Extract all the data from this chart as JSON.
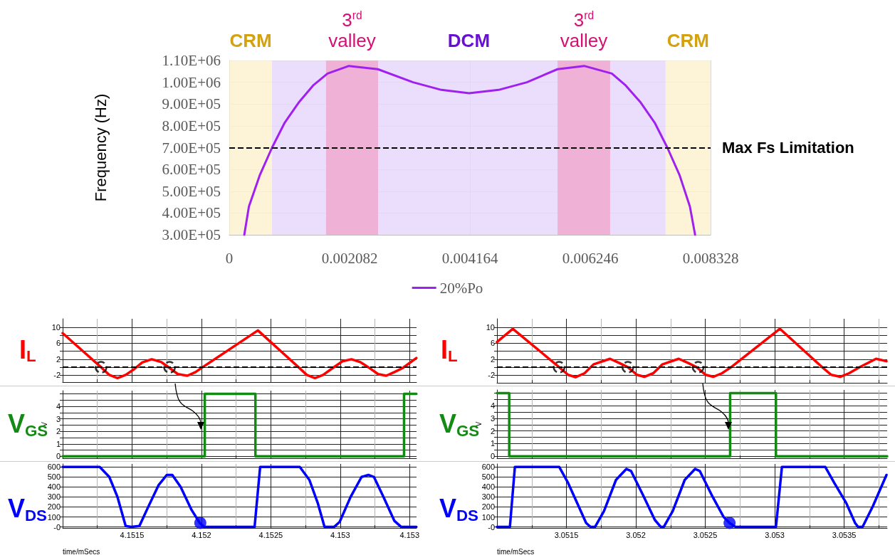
{
  "chart_data": [
    {
      "type": "line",
      "ylabel": "Frequency (Hz)",
      "x": [
        0.00026,
        0.00034,
        0.00053,
        0.00074,
        0.00096,
        0.00121,
        0.00145,
        0.0017,
        0.00207,
        0.00257,
        0.00318,
        0.00367,
        0.00415,
        0.00466,
        0.00515,
        0.00568,
        0.00614,
        0.00662,
        0.00686,
        0.00711,
        0.00736,
        0.00758,
        0.00779,
        0.00797,
        0.00806
      ],
      "series": [
        {
          "name": "20%Po",
          "color": "#a020f0",
          "values": [
            300000,
            430000,
            575000,
            700000,
            815000,
            910000,
            985000,
            1040000,
            1075000,
            1060000,
            1000000,
            965000,
            950000,
            965000,
            1000000,
            1060000,
            1075000,
            1040000,
            985000,
            910000,
            815000,
            700000,
            575000,
            430000,
            300000
          ]
        }
      ],
      "xlim": [
        0,
        0.008328
      ],
      "xticks": [
        0,
        0.002082,
        0.004164,
        0.006246,
        0.008328
      ],
      "ylim": [
        300000,
        1100000
      ],
      "yticks": [
        {
          "value": 300000,
          "label": "3.00E+05"
        },
        {
          "value": 400000,
          "label": "4.00E+05"
        },
        {
          "value": 500000,
          "label": "5.00E+05"
        },
        {
          "value": 600000,
          "label": "6.00E+05"
        },
        {
          "value": 700000,
          "label": "7.00E+05"
        },
        {
          "value": 800000,
          "label": "8.00E+05"
        },
        {
          "value": 900000,
          "label": "9.00E+05"
        },
        {
          "value": 1000000,
          "label": "1.00E+06"
        },
        {
          "value": 1100000,
          "label": "1.10E+06"
        }
      ],
      "grid": true,
      "legend": "bottom",
      "bands": [
        {
          "axis": "x",
          "from": 0,
          "to": 0.00074,
          "label": "CRM",
          "color": "#fdf0cc"
        },
        {
          "axis": "x",
          "from": 0.00074,
          "to": 0.00755,
          "label": "DCM",
          "color": "#e6d5fb"
        },
        {
          "axis": "x",
          "from": 0.001675,
          "to": 0.002575,
          "label": "3$^{rd}$\nvalley",
          "color": "#f0a8cc"
        },
        {
          "axis": "x",
          "from": 0.00568,
          "to": 0.00659,
          "label": "3$^{rd}$\nvalley",
          "color": "#f0a8cc"
        },
        {
          "axis": "x",
          "from": 0.00755,
          "to": 0.008328,
          "label": "CRM",
          "color": "#fdf0cc"
        }
      ],
      "ref_lines": [
        {
          "axis": "y",
          "value": 700000,
          "label": "Max Fs Limitation",
          "line_style": "dashed",
          "color": "#000000"
        }
      ]
    },
    {
      "type": "line",
      "title": "I$_{L}$",
      "x": [
        4.151,
        4.151277,
        4.151336,
        4.151395,
        4.151454,
        4.151514,
        4.151573,
        4.151642,
        4.151711,
        4.151771,
        4.15183,
        4.151899,
        4.151958,
        4.152008,
        4.152407,
        4.1527,
        4.152759,
        4.152818,
        4.152877,
        4.152946,
        4.153016,
        4.153081,
        4.153144,
        4.153203,
        4.153273,
        4.153332,
        4.153391,
        4.15345,
        4.153549
      ],
      "series": [
        {
          "color": "#ff0000",
          "values": [
            8.5,
            0,
            -1.9,
            -2.7,
            -1.9,
            -0.5,
            1.2,
            2,
            1.3,
            -0.2,
            -1.7,
            -2.1,
            -1.2,
            0,
            9.2,
            0,
            -1.9,
            -2.7,
            -1.9,
            -0.2,
            1.5,
            2,
            1.3,
            0,
            -1.7,
            -2.1,
            -1.2,
            -0.2,
            2.3
          ]
        },
        {
          "type": "scatter",
          "x": [
            4.151277,
            4.151771
          ],
          "values": [
            0,
            0
          ],
          "color": "#000000",
          "marker": "circle",
          "line_style": "dashed"
        }
      ],
      "xlim": [
        4.151,
        4.15355
      ],
      "xticks": [
        {
          "value": 4.15125,
          "label": null
        },
        {
          "value": 4.1515,
          "label": null
        },
        {
          "value": 4.15175,
          "label": null
        },
        {
          "value": 4.152,
          "label": null
        },
        {
          "value": 4.15225,
          "label": null
        },
        {
          "value": 4.1525,
          "label": null
        },
        {
          "value": 4.15275,
          "label": null
        },
        {
          "value": 4.153,
          "label": null
        },
        {
          "value": 4.15325,
          "label": null
        },
        {
          "value": 4.1535,
          "label": null
        }
      ],
      "ylim": [
        -3.7,
        12.1
      ],
      "yticks": [
        -2,
        {
          "value": 0,
          "label": null
        },
        2,
        {
          "value": 4,
          "label": null
        },
        6,
        {
          "value": 8,
          "label": null
        },
        10
      ],
      "grid": true,
      "tick_labels": "y",
      "ref_lines": [
        {
          "axis": "y",
          "value": 0,
          "line_style": "dashed",
          "color": "#000000"
        }
      ]
    },
    {
      "type": "step",
      "title": "V$_{GS}$",
      "ylabel": "V",
      "x": [
        4.151,
        4.152024,
        4.152389,
        4.15346,
        4.153549
      ],
      "series": [
        {
          "color": "#138a13",
          "values": [
            0,
            5,
            0,
            5,
            5
          ]
        }
      ],
      "xlim": [
        4.151,
        4.15355
      ],
      "xticks": [
        {
          "value": 4.15125,
          "label": null
        },
        {
          "value": 4.1515,
          "label": null
        },
        {
          "value": 4.15175,
          "label": null
        },
        {
          "value": 4.152,
          "label": null
        },
        {
          "value": 4.15225,
          "label": null
        },
        {
          "value": 4.1525,
          "label": null
        },
        {
          "value": 4.15275,
          "label": null
        },
        {
          "value": 4.153,
          "label": null
        },
        {
          "value": 4.15325,
          "label": null
        },
        {
          "value": 4.1535,
          "label": null
        }
      ],
      "ylim": [
        -0.15,
        5.25
      ],
      "yticks": [
        0,
        {
          "value": 0.5,
          "label": null
        },
        1,
        {
          "value": 1.5,
          "label": null
        },
        2,
        {
          "value": 2.5,
          "label": null
        },
        3,
        {
          "value": 3.5,
          "label": null
        },
        4,
        {
          "value": 4.5,
          "label": null
        },
        {
          "value": 5,
          "label": null
        }
      ],
      "grid": true,
      "tick_labels": "y"
    },
    {
      "type": "line",
      "title": "V$_{DS}$",
      "xlabel": "time/mSecs",
      "x": [
        4.151,
        4.151267,
        4.151336,
        4.151395,
        4.151454,
        4.151494,
        4.151553,
        4.151613,
        4.151692,
        4.151751,
        4.15179,
        4.15185,
        4.151929,
        4.151988,
        4.152018,
        4.152383,
        4.152423,
        4.152709,
        4.152778,
        4.152838,
        4.152887,
        4.152956,
        4.152996,
        4.153075,
        4.153154,
        4.153203,
        4.153243,
        4.153312,
        4.153391,
        4.15344,
        4.153549
      ],
      "series": [
        {
          "color": "#0000ff",
          "values": [
            600,
            600,
            500,
            300,
            10,
            0,
            10,
            190,
            420,
            520,
            520,
            400,
            170,
            40,
            0,
            0,
            600,
            600,
            470,
            240,
            0,
            0,
            50,
            300,
            500,
            520,
            500,
            300,
            60,
            0,
            0
          ]
        },
        {
          "type": "scatter",
          "x": [
            4.151992
          ],
          "values": [
            40
          ],
          "color": "#0000ff",
          "marker": "circle"
        }
      ],
      "xlim": [
        4.151,
        4.15355
      ],
      "xticks": [
        {
          "value": 4.15125,
          "label": null
        },
        4.1515,
        {
          "value": 4.15175,
          "label": null
        },
        4.152,
        {
          "value": 4.15225,
          "label": null
        },
        4.1525,
        {
          "value": 4.15275,
          "label": null
        },
        4.153,
        {
          "value": 4.15325,
          "label": null
        },
        {
          "value": 4.1535,
          "label": "4.153"
        }
      ],
      "ylim": [
        -10,
        630
      ],
      "yticks": [
        {
          "value": 0,
          "label": "-0"
        },
        100,
        200,
        300,
        400,
        500,
        600
      ],
      "grid": true
    },
    {
      "type": "line",
      "title": "I$_{L}$",
      "x": [
        3.051,
        3.051114,
        3.051448,
        3.051512,
        3.051566,
        3.051631,
        3.051695,
        3.051814,
        3.051878,
        3.051943,
        3.052008,
        3.052061,
        3.052126,
        3.052191,
        3.052309,
        3.052374,
        3.052438,
        3.052503,
        3.052557,
        3.052621,
        3.052686,
        3.053037,
        3.053342,
        3.053407,
        3.053472,
        3.053536,
        3.053612,
        3.05373,
        3.053805
      ],
      "series": [
        {
          "color": "#ff0000",
          "values": [
            6.3,
            9.6,
            0,
            -1.9,
            -2.5,
            -1.5,
            0.7,
            2.1,
            1.1,
            0,
            -1.9,
            -2.4,
            -1.5,
            0.7,
            2.1,
            1.1,
            0,
            -1.9,
            -2.4,
            -1.5,
            0,
            9.6,
            0,
            -1.9,
            -2.4,
            -1.5,
            0,
            2.1,
            1.5
          ]
        },
        {
          "type": "scatter",
          "x": [
            3.051448,
            3.051943,
            3.052449
          ],
          "values": [
            0,
            0,
            0
          ],
          "color": "#000000",
          "marker": "circle",
          "line_style": "dashed"
        }
      ],
      "xlim": [
        3.051,
        3.05381
      ],
      "xticks": [
        {
          "value": 3.05125,
          "label": null
        },
        {
          "value": 3.0515,
          "label": null
        },
        {
          "value": 3.05175,
          "label": null
        },
        {
          "value": 3.052,
          "label": null
        },
        {
          "value": 3.05225,
          "label": null
        },
        {
          "value": 3.0525,
          "label": null
        },
        {
          "value": 3.05275,
          "label": null
        },
        {
          "value": 3.053,
          "label": null
        },
        {
          "value": 3.05325,
          "label": null
        },
        {
          "value": 3.0535,
          "label": null
        },
        {
          "value": 3.05375,
          "label": null
        }
      ],
      "ylim": [
        -3.9,
        12.1
      ],
      "yticks": [
        -2,
        {
          "value": 0,
          "label": null
        },
        2,
        {
          "value": 4,
          "label": null
        },
        6,
        {
          "value": 8,
          "label": null
        },
        10
      ],
      "grid": true,
      "tick_labels": "y",
      "ref_lines": [
        {
          "axis": "y",
          "value": 0,
          "line_style": "dashed",
          "color": "#000000"
        }
      ]
    },
    {
      "type": "step",
      "title": "V$_{GS}$",
      "ylabel": "V",
      "x": [
        3.051,
        3.051088,
        3.052679,
        3.053009,
        3.05381
      ],
      "series": [
        {
          "color": "#138a13",
          "values": [
            5,
            0,
            5,
            0,
            0
          ]
        }
      ],
      "xlim": [
        3.051,
        3.05381
      ],
      "xticks": [
        {
          "value": 3.05125,
          "label": null
        },
        {
          "value": 3.0515,
          "label": null
        },
        {
          "value": 3.05175,
          "label": null
        },
        {
          "value": 3.052,
          "label": null
        },
        {
          "value": 3.05225,
          "label": null
        },
        {
          "value": 3.0525,
          "label": null
        },
        {
          "value": 3.05275,
          "label": null
        },
        {
          "value": 3.053,
          "label": null
        },
        {
          "value": 3.05325,
          "label": null
        },
        {
          "value": 3.0535,
          "label": null
        },
        {
          "value": 3.05375,
          "label": null
        }
      ],
      "ylim": [
        -0.16,
        5.25
      ],
      "yticks": [
        0,
        {
          "value": 0.5,
          "label": null
        },
        1,
        {
          "value": 1.5,
          "label": null
        },
        2,
        {
          "value": 2.5,
          "label": null
        },
        3,
        {
          "value": 3.5,
          "label": null
        },
        4,
        {
          "value": 4.5,
          "label": null
        },
        {
          "value": 5,
          "label": null
        }
      ],
      "grid": true,
      "tick_labels": "y"
    },
    {
      "type": "line",
      "title": "V$_{DS}$",
      "xlabel": "time/mSecs",
      "x": [
        3.051,
        3.051093,
        3.051129,
        3.051448,
        3.051512,
        3.051577,
        3.051642,
        3.051674,
        3.051706,
        3.051771,
        3.051857,
        3.051932,
        3.051965,
        3.052051,
        3.052137,
        3.05218,
        3.052201,
        3.052266,
        3.052352,
        3.052427,
        3.05246,
        3.052546,
        3.052632,
        3.052675,
        3.052718,
        3.053009,
        3.053052,
        3.053364,
        3.053429,
        3.053515,
        3.053579,
        3.053601,
        3.053633,
        3.053708,
        3.053805
      ],
      "series": [
        {
          "color": "#0000ff",
          "values": [
            0,
            0,
            600,
            600,
            440,
            240,
            40,
            0,
            0,
            160,
            470,
            580,
            560,
            320,
            70,
            0,
            0,
            160,
            470,
            580,
            560,
            320,
            100,
            40,
            0,
            0,
            600,
            600,
            440,
            240,
            40,
            0,
            0,
            210,
            520
          ]
        },
        {
          "type": "scatter",
          "x": [
            3.052675
          ],
          "values": [
            40
          ],
          "color": "#0000ff",
          "marker": "circle"
        }
      ],
      "xlim": [
        3.051,
        3.05381
      ],
      "xticks": [
        {
          "value": 3.05125,
          "label": null
        },
        3.0515,
        {
          "value": 3.05175,
          "label": null
        },
        3.052,
        {
          "value": 3.05225,
          "label": null
        },
        3.0525,
        {
          "value": 3.05275,
          "label": null
        },
        3.053,
        {
          "value": 3.05325,
          "label": null
        },
        3.0535,
        {
          "value": 3.05375,
          "label": null
        }
      ],
      "ylim": [
        -10,
        630
      ],
      "yticks": [
        {
          "value": 0,
          "label": "-0"
        },
        100,
        200,
        300,
        400,
        500,
        600
      ],
      "grid": true
    }
  ]
}
